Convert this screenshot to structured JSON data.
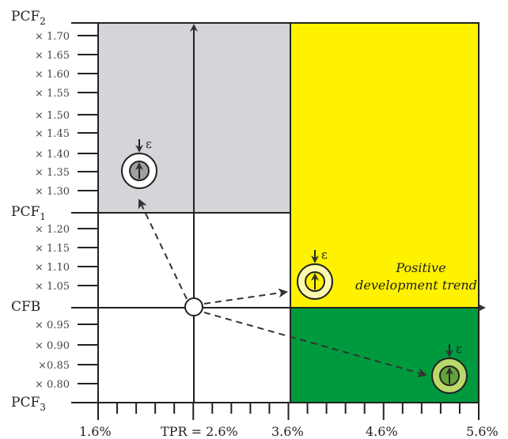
{
  "y_axis": {
    "main_labels": [
      {
        "base": "PCF",
        "sub": "2"
      },
      {
        "base": "PCF",
        "sub": "1"
      },
      {
        "base": "CFB",
        "sub": ""
      },
      {
        "base": "PCF",
        "sub": "3"
      }
    ],
    "upper_ticks": [
      "× 1.70",
      "× 1.65",
      "× 1.60",
      "× 1.55",
      "× 1.50",
      "× 1.45",
      "× 1.40",
      "× 1.35",
      "× 1.30"
    ],
    "middle_ticks": [
      "× 1.20",
      "× 1.15",
      "× 1.10",
      "× 1.05"
    ],
    "lower_ticks": [
      "× 0.95",
      "× 0.90",
      "×0.85",
      "× 0.80"
    ]
  },
  "x_axis": {
    "labels": [
      "1.6%",
      "TPR = 2.6%",
      "3.6%",
      "4.6%",
      "5.6%"
    ]
  },
  "zones": {
    "top_left_color": "#d4d5d8",
    "right_color": "#fff200",
    "bottom_right_color": "#009a3e"
  },
  "annotations": {
    "trend_line1": "Positive",
    "trend_line2": "development trend",
    "epsilon": "ε"
  }
}
